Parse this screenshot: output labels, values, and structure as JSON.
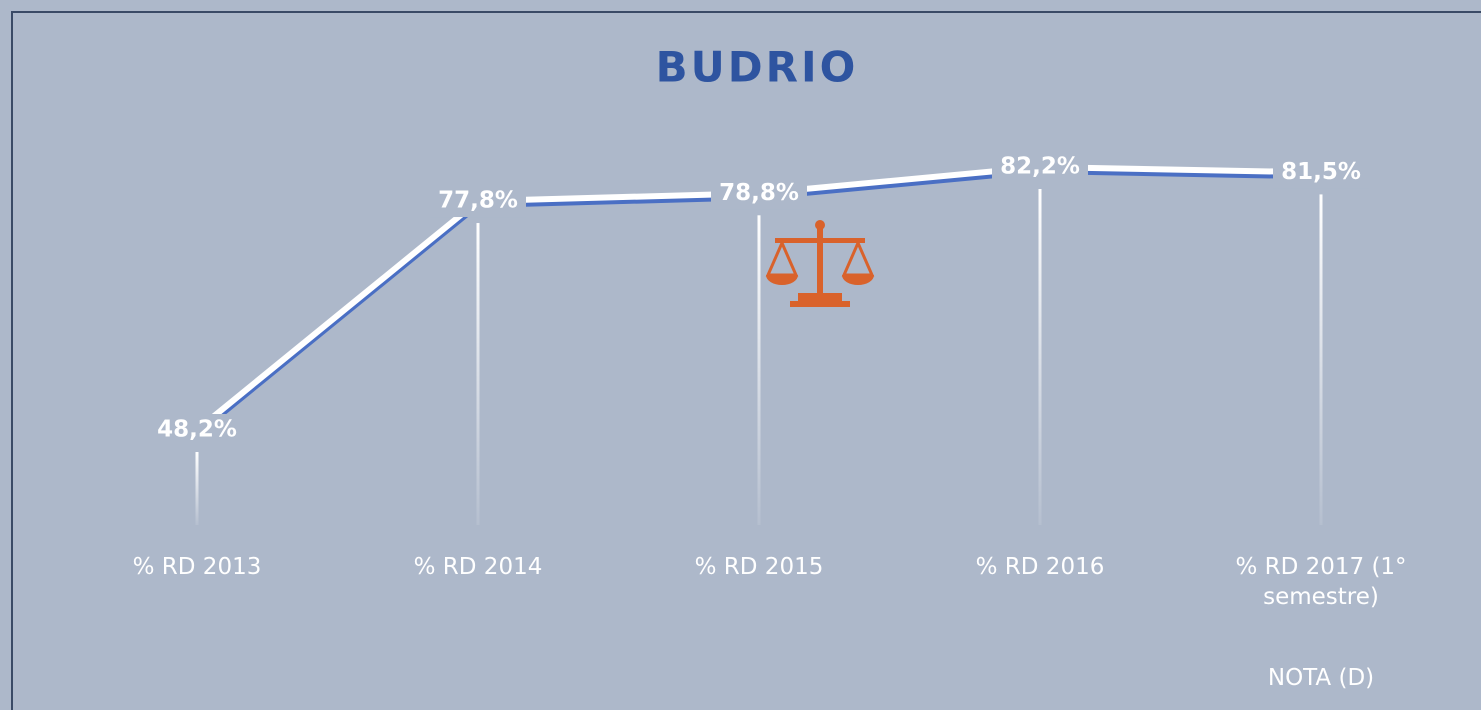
{
  "chart_data": {
    "type": "line",
    "title": "BUDRIO",
    "categories": [
      "% RD 2013",
      "% RD 2014",
      "% RD 2015",
      "% RD 2016",
      "% RD 2017 (1° semestre)"
    ],
    "series": [
      {
        "color": "#4a6fc4",
        "values": [
          48.2,
          77.8,
          78.8,
          82.2,
          81.5
        ],
        "value_labels": [
          "48,2%",
          "77,8%",
          "78,8%",
          "82,2%",
          "81,5%"
        ]
      }
    ],
    "annotation": "NOTA (D)"
  }
}
